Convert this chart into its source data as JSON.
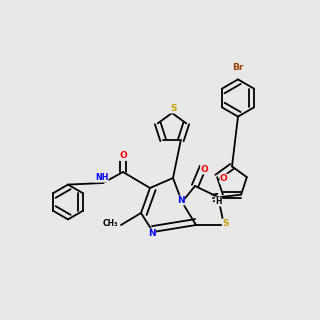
{
  "bg_color": "#e8e8e8",
  "bond_color": "#000000",
  "S_color": "#c8a000",
  "N_color": "#0000ff",
  "O_color": "#ff0000",
  "Br_color": "#a04000",
  "lw": 1.3,
  "sep": 0.011
}
